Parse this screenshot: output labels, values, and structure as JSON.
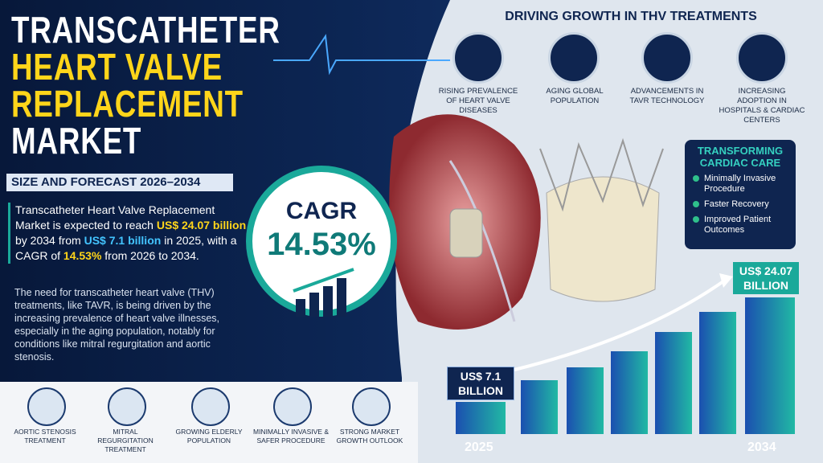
{
  "header": {
    "title_lines": [
      "TRANSCATHETER",
      "HEART VALVE",
      "REPLACEMENT",
      "MARKET"
    ],
    "subtitle": "SIZE AND FORECAST 2026–2034"
  },
  "summary": {
    "parts": [
      "Transcatheter Heart Valve Replacement Market is expected to reach ",
      "US$ 24.07 billion",
      " by 2034 from ",
      "US$ 7.1 billion",
      " in 2025, with a CAGR of ",
      "14.53%",
      " from 2026 to 2034."
    ]
  },
  "description": "The need for transcatheter heart valve (THV) treatments, like TAVR, is being driven by the increasing prevalence of heart valve illnesses, especially in the aging population, notably for conditions like mitral regurgitation and aortic stenosis.",
  "cagr": {
    "label": "CAGR",
    "value": "14.53%"
  },
  "drivers": {
    "title": "DRIVING GROWTH IN THV TREATMENTS",
    "items": [
      "RISING PREVALENCE OF HEART VALVE DISEASES",
      "AGING GLOBAL POPULATION",
      "ADVANCEMENTS IN TAVR TECHNOLOGY",
      "INCREASING ADOPTION IN HOSPITALS & CARDIAC CENTERS"
    ]
  },
  "care": {
    "title": "TRANSFORMING CARDIAC CARE",
    "items": [
      "Minimally Invasive Procedure",
      "Faster Recovery",
      "Improved Patient Outcomes"
    ]
  },
  "growth": {
    "start_label": "US$ 7.1 BILLION",
    "end_label": "US$ 24.07 BILLION",
    "start_year": "2025",
    "end_year": "2034"
  },
  "features": [
    "AORTIC STENOSIS TREATMENT",
    "MITRAL REGURGITATION TREATMENT",
    "GROWING ELDERLY POPULATION",
    "MINIMALLY INVASIVE & SAFER PROCEDURE",
    "STRONG MARKET GROWTH OUTLOOK"
  ]
}
